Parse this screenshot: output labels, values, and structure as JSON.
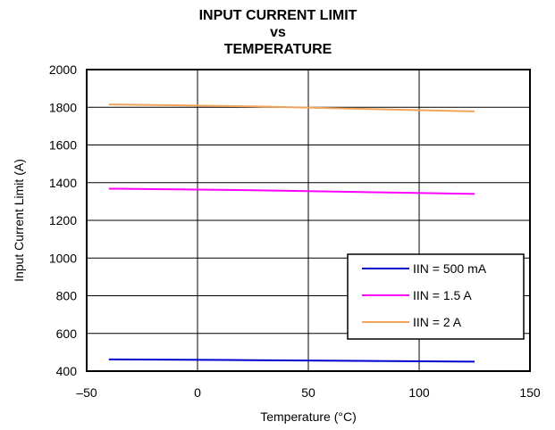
{
  "chart_data": {
    "type": "line",
    "title": [
      "INPUT CURRENT LIMIT",
      "vs",
      "TEMPERATURE"
    ],
    "xlabel": "Temperature (°C)",
    "ylabel": "Input Current Limit (A)",
    "xlim": [
      -50,
      150
    ],
    "ylim": [
      400,
      2000
    ],
    "xticks": [
      -50,
      0,
      50,
      100,
      150
    ],
    "xtick_labels": [
      "–50",
      "0",
      "50",
      "100",
      "150"
    ],
    "yticks": [
      400,
      600,
      800,
      1000,
      1200,
      1400,
      1600,
      1800,
      2000
    ],
    "ytick_labels": [
      "400",
      "600",
      "800",
      "1000",
      "1200",
      "1400",
      "1600",
      "1800",
      "2000"
    ],
    "grid": true,
    "legend_position": "bottom-right",
    "series": [
      {
        "name": "IIN = 500 mA",
        "color": "#0000cc",
        "x": [
          -40,
          25,
          125
        ],
        "y": [
          462,
          458,
          450
        ]
      },
      {
        "name": "IIN = 1.5 A",
        "color": "#ff00ff",
        "x": [
          -40,
          25,
          125
        ],
        "y": [
          1368,
          1360,
          1340
        ]
      },
      {
        "name": "IIN = 2 A",
        "color": "#f4a45a",
        "x": [
          -40,
          25,
          125
        ],
        "y": [
          1815,
          1805,
          1778
        ]
      }
    ]
  }
}
